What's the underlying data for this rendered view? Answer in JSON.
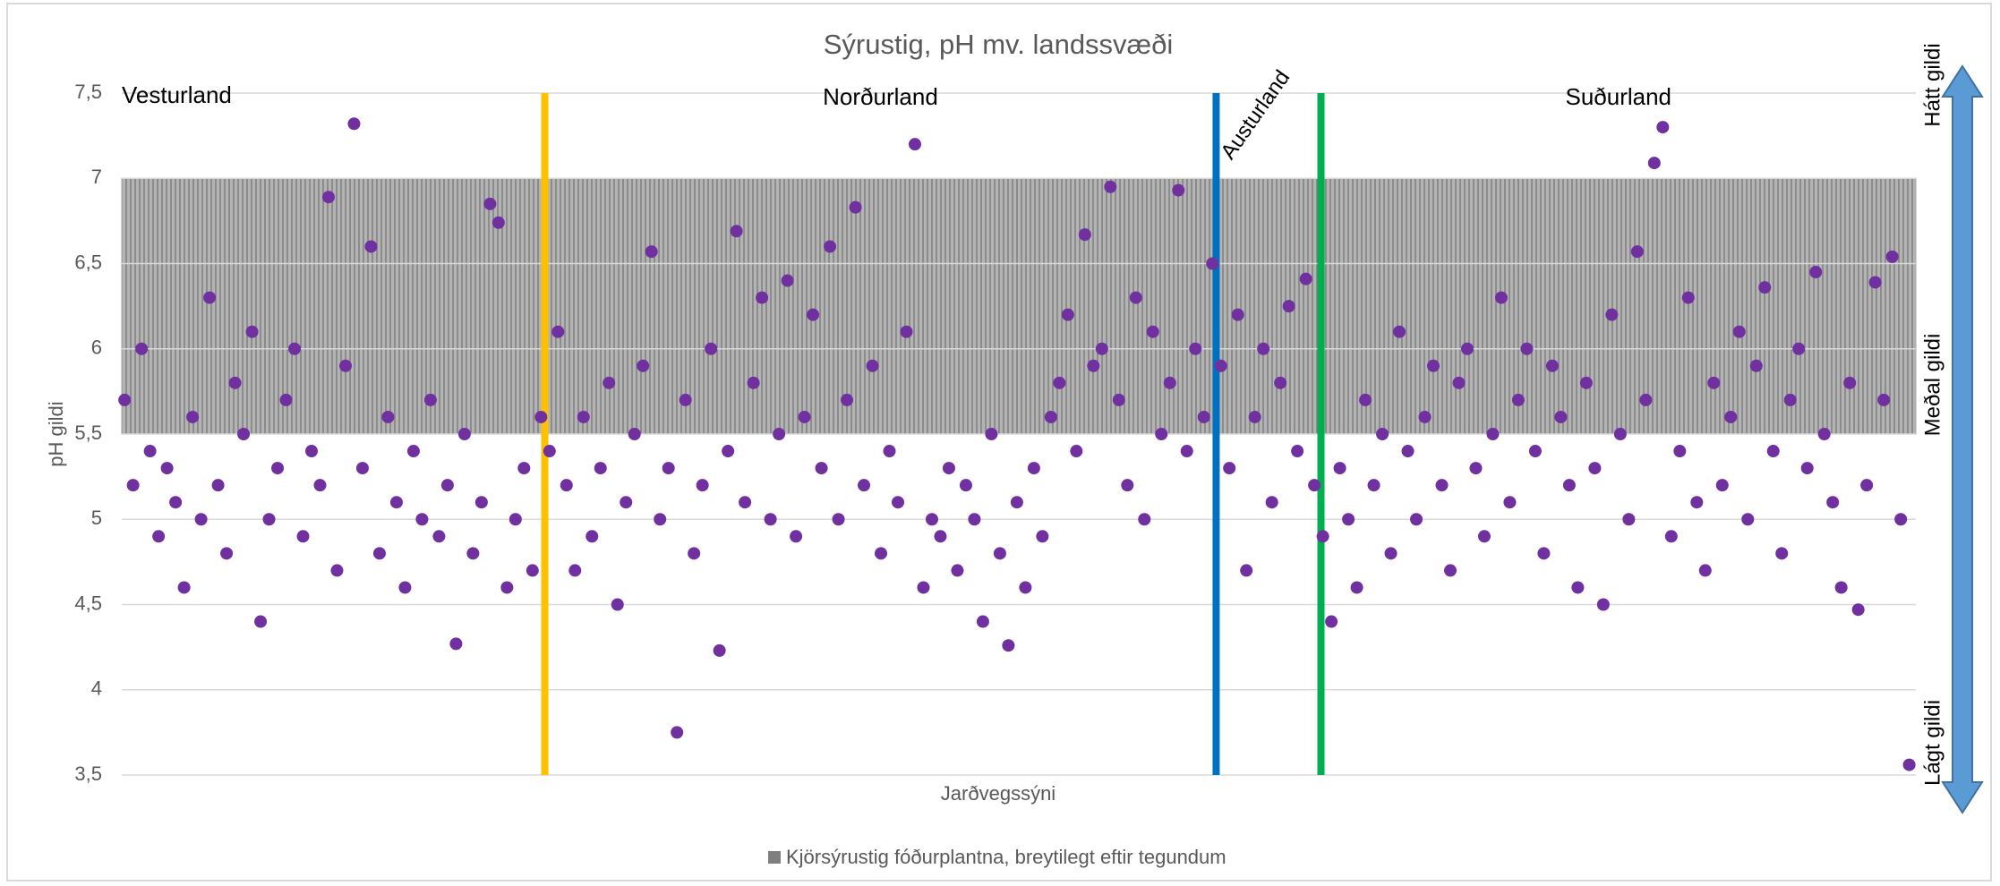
{
  "chart_data": {
    "type": "scatter",
    "title": "Sýrustig, pH mv. landssvæði",
    "x_label": "Jarðvegssýni",
    "y_label": "pH gildi",
    "xlim": [
      0,
      1900
    ],
    "ylim": [
      3.5,
      7.5
    ],
    "yticks": [
      {
        "value": 7.5,
        "label": "7,5"
      },
      7,
      {
        "value": 6.5,
        "label": "6,5"
      },
      6,
      {
        "value": 5.5,
        "label": "5,5"
      },
      5,
      {
        "value": 4.5,
        "label": "4,5"
      },
      4,
      {
        "value": 3.5,
        "label": "3,5"
      }
    ],
    "grid": true,
    "band": {
      "name": "Kjörsýrustig fóðurplantna, breytilegt eftir tegundum",
      "range": [
        5.5,
        7
      ],
      "color": "#a6a6a6"
    },
    "dividers": [
      {
        "x": 448,
        "color": "#ffc000"
      },
      {
        "x": 1159,
        "color": "#0070c0"
      },
      {
        "x": 1270,
        "color": "#00b050"
      }
    ],
    "regions": [
      "Vesturland",
      "Norðurland",
      "Austurland",
      "Suðurland"
    ],
    "side_labels": [
      "Hátt gildi",
      "Meðal gildi",
      "Lágt gildi"
    ],
    "series": [
      {
        "color": "#7030a0",
        "x": [
          3,
          12,
          21,
          30,
          39,
          48,
          57,
          66,
          75,
          84,
          93,
          102,
          111,
          120,
          129,
          138,
          147,
          156,
          165,
          174,
          183,
          192,
          201,
          210,
          219,
          228,
          237,
          246,
          255,
          264,
          273,
          282,
          291,
          300,
          309,
          318,
          327,
          336,
          345,
          354,
          363,
          372,
          381,
          390,
          399,
          408,
          417,
          426,
          435,
          444,
          453,
          462,
          471,
          480,
          489,
          498,
          507,
          516,
          525,
          534,
          543,
          552,
          561,
          570,
          579,
          588,
          597,
          606,
          615,
          624,
          633,
          642,
          651,
          660,
          669,
          678,
          687,
          696,
          705,
          714,
          723,
          732,
          741,
          750,
          759,
          768,
          777,
          786,
          795,
          804,
          813,
          822,
          831,
          840,
          849,
          858,
          867,
          876,
          885,
          894,
          903,
          912,
          921,
          930,
          939,
          948,
          957,
          966,
          975,
          984,
          993,
          1002,
          1011,
          1020,
          1029,
          1038,
          1047,
          1056,
          1065,
          1074,
          1083,
          1092,
          1101,
          1110,
          1119,
          1128,
          1137,
          1146,
          1155,
          1164,
          1173,
          1182,
          1191,
          1200,
          1209,
          1218,
          1227,
          1236,
          1245,
          1254,
          1263,
          1272,
          1281,
          1290,
          1299,
          1308,
          1317,
          1326,
          1335,
          1344,
          1353,
          1362,
          1371,
          1380,
          1389,
          1398,
          1407,
          1416,
          1425,
          1434,
          1443,
          1452,
          1461,
          1470,
          1479,
          1488,
          1497,
          1506,
          1515,
          1524,
          1533,
          1542,
          1551,
          1560,
          1569,
          1578,
          1587,
          1596,
          1605,
          1614,
          1623,
          1632,
          1641,
          1650,
          1659,
          1668,
          1677,
          1686,
          1695,
          1704,
          1713,
          1722,
          1731,
          1740,
          1749,
          1758,
          1767,
          1776,
          1785,
          1794,
          1803,
          1812,
          1821,
          1830,
          1839,
          1848,
          1857,
          1866,
          1875,
          1884,
          1893
        ],
        "values": [
          5.7,
          5.2,
          6.0,
          5.4,
          4.9,
          5.3,
          5.1,
          4.6,
          5.6,
          5.0,
          6.3,
          5.2,
          4.8,
          5.8,
          5.5,
          6.1,
          4.4,
          5.0,
          5.3,
          5.7,
          6.0,
          4.9,
          5.4,
          5.2,
          6.89,
          4.7,
          5.9,
          7.32,
          5.3,
          6.6,
          4.8,
          5.6,
          5.1,
          4.6,
          5.4,
          5.0,
          5.7,
          4.9,
          5.2,
          4.27,
          5.5,
          4.8,
          5.1,
          6.85,
          6.74,
          4.6,
          5.0,
          5.3,
          4.7,
          5.6,
          5.4,
          6.1,
          5.2,
          4.7,
          5.6,
          4.9,
          5.3,
          5.8,
          4.5,
          5.1,
          5.5,
          5.9,
          6.57,
          5.0,
          5.3,
          3.75,
          5.7,
          4.8,
          5.2,
          6.0,
          4.23,
          5.4,
          6.69,
          5.1,
          5.8,
          6.3,
          5.0,
          5.5,
          6.4,
          4.9,
          5.6,
          6.2,
          5.3,
          6.6,
          5.0,
          5.7,
          6.83,
          5.2,
          5.9,
          4.8,
          5.4,
          5.1,
          6.1,
          7.2,
          4.6,
          5.0,
          4.9,
          5.3,
          4.7,
          5.2,
          5.0,
          4.4,
          5.5,
          4.8,
          4.26,
          5.1,
          4.6,
          5.3,
          4.9,
          5.6,
          5.8,
          6.2,
          5.4,
          6.67,
          5.9,
          6.0,
          6.95,
          5.7,
          5.2,
          6.3,
          5.0,
          6.1,
          5.5,
          5.8,
          6.93,
          5.4,
          6.0,
          5.6,
          6.5,
          5.9,
          5.3,
          6.2,
          4.7,
          5.6,
          6.0,
          5.1,
          5.8,
          6.25,
          5.4,
          6.41,
          5.2,
          4.9,
          4.4,
          5.3,
          5.0,
          4.6,
          5.7,
          5.2,
          5.5,
          4.8,
          6.1,
          5.4,
          5.0,
          5.6,
          5.9,
          5.2,
          4.7,
          5.8,
          6.0,
          5.3,
          4.9,
          5.5,
          6.3,
          5.1,
          5.7,
          6.0,
          5.4,
          4.8,
          5.9,
          5.6,
          5.2,
          4.6,
          5.8,
          5.3,
          4.5,
          6.2,
          5.5,
          5.0,
          6.57,
          5.7,
          7.09,
          7.3,
          4.9,
          5.4,
          6.3,
          5.1,
          4.7,
          5.8,
          5.2,
          5.6,
          6.1,
          5.0,
          5.9,
          6.36,
          5.4,
          4.8,
          5.7,
          6.0,
          5.3,
          6.45,
          5.5,
          5.1,
          4.6,
          5.8,
          4.47,
          5.2,
          6.39,
          5.7,
          6.54,
          5.0,
          3.56
        ]
      }
    ]
  }
}
